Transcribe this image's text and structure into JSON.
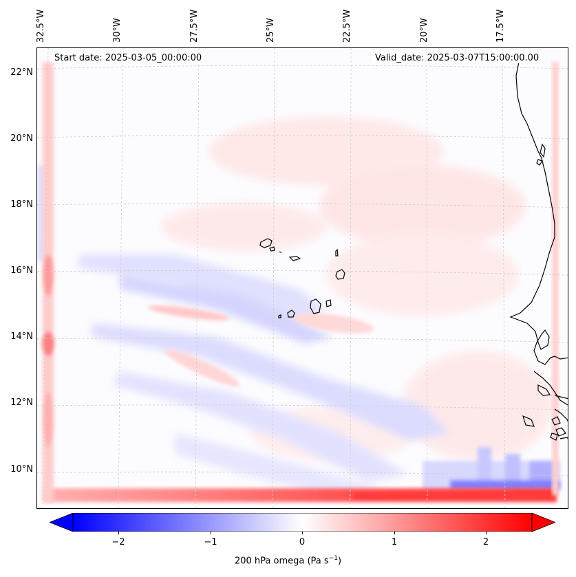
{
  "map": {
    "start_date": "Start date: 2025-03-05_00:00:00",
    "valid_date": "Valid_date: 2025-03-07T15:00:00.00",
    "lon_labels": [
      "32.5°W",
      "30°W",
      "27.5°W",
      "25°W",
      "22.5°W",
      "20°W",
      "17.5°W"
    ],
    "lat_labels": [
      "22°N",
      "20°N",
      "18°N",
      "16°N",
      "14°N",
      "12°N",
      "10°N"
    ],
    "variable": "200 hPa omega",
    "units": "Pa s",
    "units_exp": "−1"
  },
  "colorbar": {
    "ticks": [
      "−2",
      "−1",
      "0",
      "1",
      "2"
    ],
    "tick_values": [
      -2,
      -1,
      0,
      1,
      2
    ],
    "vmin": -2.6,
    "vmax": 2.6,
    "negative_color": "#0000ff",
    "zero_color": "#ffffff",
    "positive_color": "#ff0000"
  },
  "colors": {
    "coastline": "#000000",
    "gridline": "#cccccc"
  }
}
